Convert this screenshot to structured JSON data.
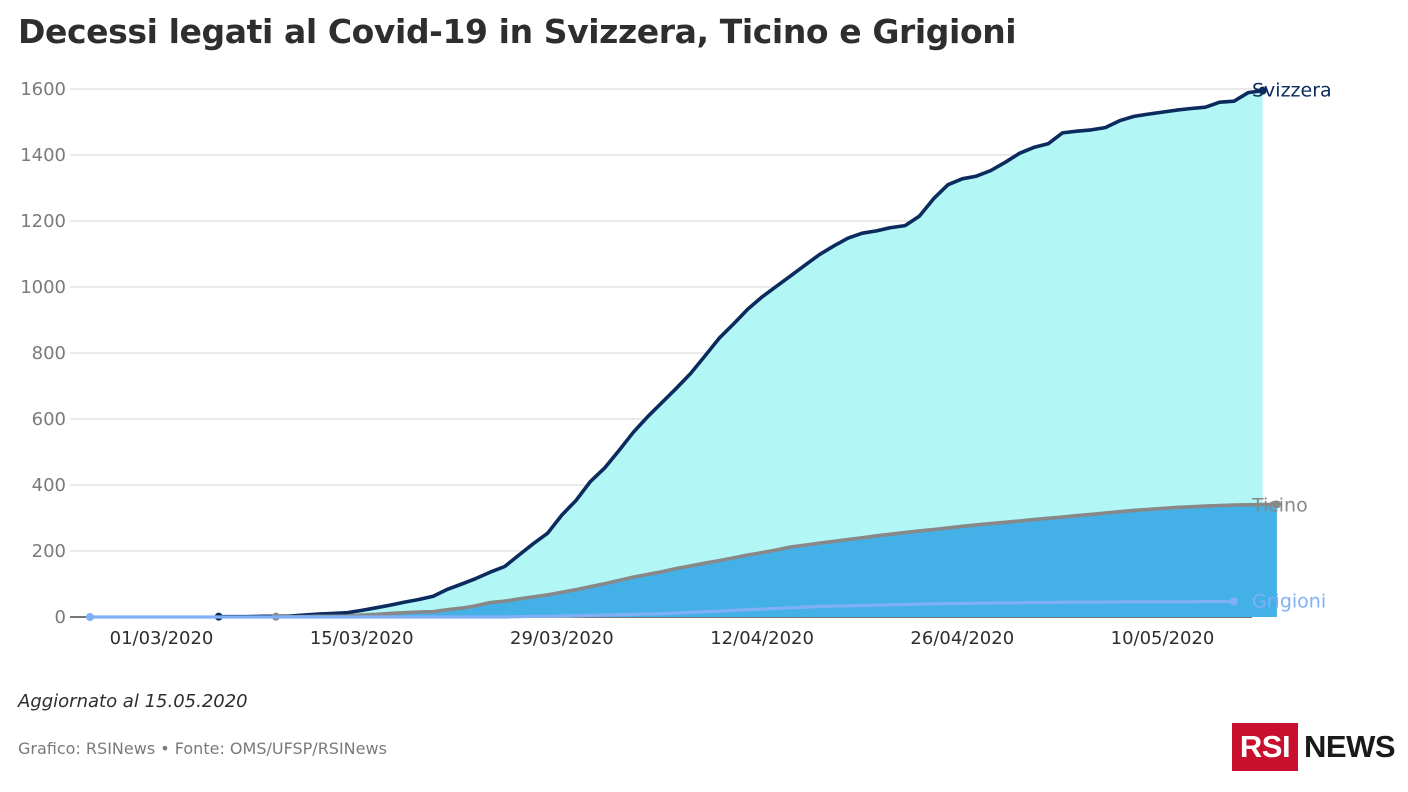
{
  "title": "Decessi legati al Covid-19 in Svizzera, Ticino e Grigioni",
  "footer": {
    "updated": "Aggiornato al 15.05.2020",
    "source": "Grafico: RSINews • Fonte: OMS/UFSP/RSINews"
  },
  "logo": {
    "box": "RSI",
    "text": "NEWS"
  },
  "colors": {
    "svizzera_line": "#0b2a5e",
    "svizzera_fill": "#b3f6f6",
    "ticino_line": "#888888",
    "ticino_fill": "#43b1e8",
    "grigioni_line": "#7fb0f5",
    "grid": "#d4d4d4"
  },
  "chart_data": {
    "type": "area",
    "x_start": "25/02/2020",
    "x_end": "15/05/2020",
    "xticks": [
      "01/03/2020",
      "15/03/2020",
      "29/03/2020",
      "12/04/2020",
      "26/04/2020",
      "10/05/2020"
    ],
    "yticks": [
      0,
      200,
      400,
      600,
      800,
      1000,
      1200,
      1400,
      1600
    ],
    "ylim": [
      0,
      1600
    ],
    "grid": true,
    "legend": "end-of-line labels",
    "series": [
      {
        "name": "Svizzera",
        "start": "05/03/2020",
        "values": [
          1,
          1,
          1,
          2,
          2,
          3,
          6,
          9,
          11,
          13,
          20,
          28,
          36,
          45,
          53,
          63,
          84,
          100,
          117,
          136,
          153,
          188,
          222,
          254,
          309,
          354,
          411,
          452,
          505,
          560,
          607,
          650,
          693,
          738,
          791,
          845,
          888,
          933,
          970,
          1002,
          1034,
          1066,
          1098,
          1124,
          1148,
          1163,
          1170,
          1180,
          1186,
          1215,
          1268,
          1310,
          1328,
          1336,
          1353,
          1378,
          1405,
          1423,
          1434,
          1467,
          1472,
          1476,
          1483,
          1504,
          1517,
          1524,
          1530,
          1536,
          1541,
          1545,
          1560,
          1563,
          1589,
          1595
        ]
      },
      {
        "name": "Ticino",
        "start": "09/03/2020",
        "values": [
          1,
          1,
          1,
          2,
          2,
          3,
          6,
          8,
          11,
          13,
          15,
          16,
          22,
          27,
          34,
          44,
          48,
          55,
          61,
          67,
          75,
          83,
          92,
          101,
          111,
          121,
          129,
          137,
          147,
          155,
          163,
          171,
          179,
          188,
          195,
          203,
          212,
          218,
          224,
          229,
          235,
          240,
          246,
          251,
          256,
          261,
          265,
          270,
          275,
          279,
          283,
          287,
          291,
          295,
          299,
          303,
          307,
          311,
          315,
          319,
          323,
          326,
          329,
          332,
          334,
          336,
          338,
          339,
          340,
          341,
          341
        ]
      },
      {
        "name": "Grigioni",
        "start": "25/02/2020",
        "values": [
          0,
          0,
          0,
          0,
          0,
          0,
          0,
          0,
          0,
          0,
          0,
          0,
          0,
          0,
          0,
          0,
          0,
          0,
          0,
          0,
          0,
          0,
          0,
          0,
          0,
          0,
          0,
          0,
          0,
          0,
          1,
          2,
          2,
          3,
          4,
          5,
          6,
          7,
          8,
          9,
          10,
          12,
          14,
          16,
          18,
          20,
          22,
          24,
          26,
          28,
          30,
          32,
          33,
          34,
          35,
          36,
          37,
          38,
          39,
          40,
          41,
          41,
          42,
          42,
          43,
          43,
          44,
          44,
          45,
          45,
          45,
          45,
          46,
          46,
          46,
          46,
          46,
          46,
          47,
          47,
          47
        ]
      }
    ]
  }
}
